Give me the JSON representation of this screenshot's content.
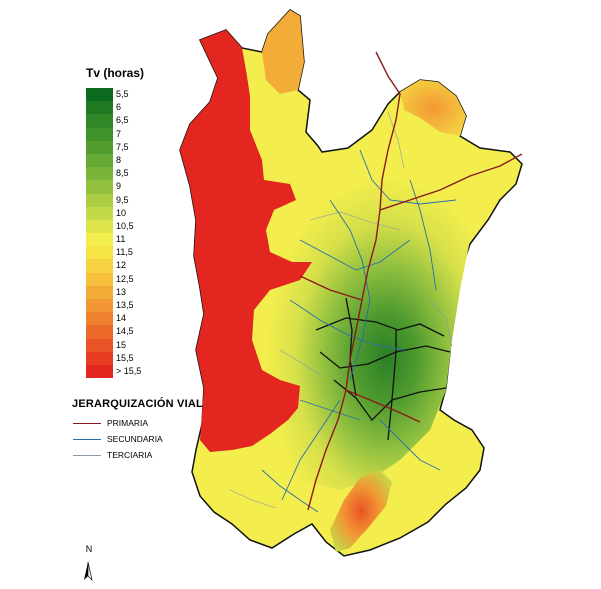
{
  "legend": {
    "title": "Tv (horas)",
    "classes": [
      {
        "label": "5,5",
        "color": "#0b6a1e"
      },
      {
        "label": "6",
        "color": "#1f7a22"
      },
      {
        "label": "6,5",
        "color": "#2f8727"
      },
      {
        "label": "7",
        "color": "#40922b"
      },
      {
        "label": "7,5",
        "color": "#539d2f"
      },
      {
        "label": "8",
        "color": "#66a934"
      },
      {
        "label": "8,5",
        "color": "#7ab53a"
      },
      {
        "label": "9",
        "color": "#91c13f"
      },
      {
        "label": "9,5",
        "color": "#aacd43"
      },
      {
        "label": "10",
        "color": "#c4d947"
      },
      {
        "label": "10,5",
        "color": "#dee44b"
      },
      {
        "label": "11",
        "color": "#f3ee4d"
      },
      {
        "label": "11,5",
        "color": "#f6e447"
      },
      {
        "label": "12",
        "color": "#f7d342"
      },
      {
        "label": "12,5",
        "color": "#f6c03d"
      },
      {
        "label": "13",
        "color": "#f4ac38"
      },
      {
        "label": "13,5",
        "color": "#f29733"
      },
      {
        "label": "14",
        "color": "#ef812e"
      },
      {
        "label": "14,5",
        "color": "#ec6b2a"
      },
      {
        "label": "15",
        "color": "#e95426"
      },
      {
        "label": "15,5",
        "color": "#e63d22"
      },
      {
        "label": "> 15,5",
        "color": "#e3261f"
      }
    ]
  },
  "road_legend": {
    "title": "JERARQUIZACIÓN VIAL",
    "items": [
      {
        "label": "PRIMARIA",
        "color": "#8b1a1a"
      },
      {
        "label": "SECUNDARIA",
        "color": "#2a6fa8"
      },
      {
        "label": "TERCIARIA",
        "color": "#8a9aa8"
      }
    ]
  },
  "north_arrow": {
    "letter": "N",
    "icon": "north-arrow-icon"
  }
}
